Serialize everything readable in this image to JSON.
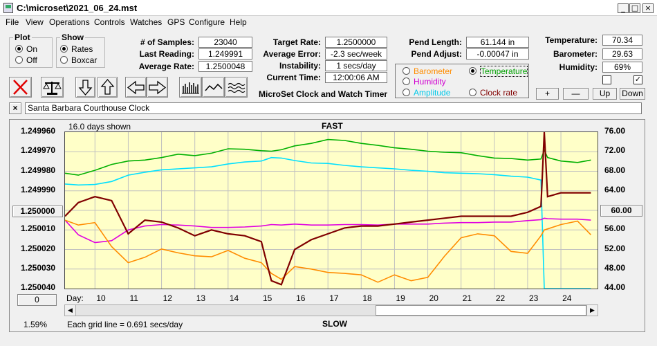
{
  "window": {
    "title": "C:\\microset\\2021_06_24.mst",
    "min": "_",
    "max": "□",
    "close": "×"
  },
  "menu": [
    "File",
    "View",
    "Operations",
    "Controls",
    "Watches",
    "GPS",
    "Configure",
    "Help"
  ],
  "plot_group": {
    "title": "Plot",
    "on": "On",
    "off": "Off",
    "selected": "On"
  },
  "show_group": {
    "title": "Show",
    "rates": "Rates",
    "boxcar": "Boxcar",
    "selected": "Rates"
  },
  "stats": {
    "samples_label": "# of Samples:",
    "samples": "23040",
    "last_label": "Last Reading:",
    "last": "1.249991",
    "avg_rate_label": "Average Rate:",
    "avg_rate": "1.2500048",
    "target_label": "Target Rate:",
    "target": "1.2500000",
    "avg_err_label": "Average Error:",
    "avg_err": "-2.3 sec/week",
    "instab_label": "Instability:",
    "instab": "1 secs/day",
    "time_label": "Current Time:",
    "time": "12:00:06 AM",
    "app_name": "MicroSet Clock and Watch Timer",
    "pend_len_label": "Pend Length:",
    "pend_len": "61.144 in",
    "pend_adj_label": "Pend Adjust:",
    "pend_adj": "-0.00047 in",
    "temp_label": "Temperature:",
    "temp": "70.34",
    "baro_label": "Barometer:",
    "baro": "29.63",
    "hum_label": "Humidity:",
    "hum": "69%"
  },
  "overlay": {
    "barometer": "Barometer",
    "temperature": "Temperature",
    "humidity": "Humidity",
    "amplitude": "Amplitude",
    "clock_rate": "Clock rate",
    "selected": "Temperature"
  },
  "adj_buttons": {
    "plus": "+",
    "minus": "—",
    "up": "Up",
    "down": "Down"
  },
  "clock_name": "Santa Barbara Courthouse Clock",
  "close_x": "×",
  "chart_labels": {
    "days_shown": "16.0 days shown",
    "fast": "FAST",
    "slow": "SLOW",
    "day_label": "Day:",
    "grid_note": "Each grid line = 0.691 secs/day",
    "percent": "1.59%",
    "left_btn": "1.250000",
    "right_btn": "60.00",
    "zero_btn": "0"
  },
  "colors": {
    "plot_bg": "#ffffc8",
    "rate": "#800000",
    "temperature": "#00b000",
    "humidity": "#e000e0",
    "amplitude": "#00e0ff",
    "barometer": "#ff8c00"
  },
  "chart_data": {
    "type": "line",
    "x_ticks": [
      "10",
      "11",
      "12",
      "13",
      "14",
      "15",
      "16",
      "17",
      "18",
      "19",
      "20",
      "21",
      "22",
      "23",
      "24"
    ],
    "left_axis": {
      "ticks": [
        "1.249960",
        "1.249970",
        "1.249980",
        "1.249990",
        "1.250010",
        "1.250020",
        "1.250030",
        "1.250040"
      ],
      "ylim": [
        1.24996,
        1.25004
      ]
    },
    "right_axis": {
      "ticks": [
        "76.00",
        "72.00",
        "68.00",
        "64.00",
        "56.00",
        "52.00",
        "48.00",
        "44.00"
      ],
      "ylim": [
        44,
        76
      ]
    },
    "x": [
      9.1,
      9.5,
      10,
      10.5,
      11,
      11.5,
      12,
      12.5,
      13,
      13.5,
      14,
      14.5,
      15,
      15.3,
      15.6,
      16,
      16.5,
      17,
      17.5,
      18,
      18.5,
      19,
      19.5,
      20,
      20.5,
      21,
      21.5,
      22,
      22.5,
      23,
      23.4,
      23.5,
      23.6,
      24,
      24.5,
      24.9
    ],
    "series": [
      {
        "name": "Clock rate",
        "axis": "left",
        "values": [
          1.250003,
          1.249996,
          1.249993,
          1.249995,
          1.250012,
          1.250005,
          1.250006,
          1.250009,
          1.250013,
          1.25001,
          1.250012,
          1.250013,
          1.250016,
          1.250036,
          1.250038,
          1.25002,
          1.250015,
          1.250012,
          1.250009,
          1.250008,
          1.250008,
          1.250007,
          1.250006,
          1.250005,
          1.250004,
          1.250003,
          1.250003,
          1.250003,
          1.250003,
          1.250001,
          1.249998,
          1.24996,
          1.249993,
          1.249991,
          1.249991,
          1.249991
        ]
      },
      {
        "name": "Temperature",
        "axis": "right",
        "values": [
          67.6,
          67.2,
          68.2,
          69.4,
          70.1,
          70.3,
          70.8,
          71.5,
          71.2,
          71.7,
          72.6,
          72.5,
          72.2,
          72.1,
          72.4,
          73.2,
          73.7,
          74.5,
          74.3,
          73.7,
          73.3,
          72.8,
          72.5,
          72.1,
          71.9,
          71.8,
          71.2,
          70.7,
          70.6,
          70.3,
          70.5,
          72.3,
          70.8,
          70.1,
          69.8,
          70.3
        ]
      },
      {
        "name": "Amplitude",
        "axis": "right",
        "values": [
          65.4,
          65.2,
          65.3,
          65.9,
          67.2,
          67.8,
          68.3,
          68.5,
          68.7,
          68.9,
          69.5,
          69.9,
          70.1,
          70.8,
          70.7,
          70.2,
          69.7,
          69.6,
          69.2,
          68.9,
          68.7,
          68.5,
          68.2,
          68.0,
          67.7,
          67.6,
          67.5,
          67.3,
          67.0,
          66.8,
          66.2,
          44.0,
          44.0,
          44.0,
          44.0,
          44.0
        ]
      },
      {
        "name": "Humidity",
        "axis": "right",
        "values": [
          58.0,
          55.0,
          53.4,
          53.8,
          56.0,
          56.8,
          57.1,
          57.0,
          56.8,
          56.5,
          56.5,
          56.6,
          56.8,
          57.1,
          57.0,
          57.2,
          57.0,
          57.0,
          57.1,
          57.1,
          57.0,
          57.2,
          57.2,
          57.2,
          57.4,
          57.5,
          57.5,
          57.6,
          57.6,
          57.9,
          58.1,
          58.4,
          58.3,
          58.2,
          58.2,
          58.0
        ]
      },
      {
        "name": "Barometer",
        "axis": "right",
        "values": [
          58.0,
          57.0,
          57.5,
          52.6,
          49.3,
          50.4,
          52.1,
          51.3,
          50.7,
          50.5,
          51.8,
          50.2,
          49.3,
          47.1,
          45.9,
          48.5,
          48.0,
          47.3,
          47.1,
          46.8,
          45.3,
          46.8,
          45.6,
          46.3,
          50.6,
          54.4,
          55.2,
          54.8,
          51.6,
          51.2,
          54.8,
          56.0,
          56.2,
          57.1,
          57.8,
          55.0
        ]
      }
    ]
  }
}
